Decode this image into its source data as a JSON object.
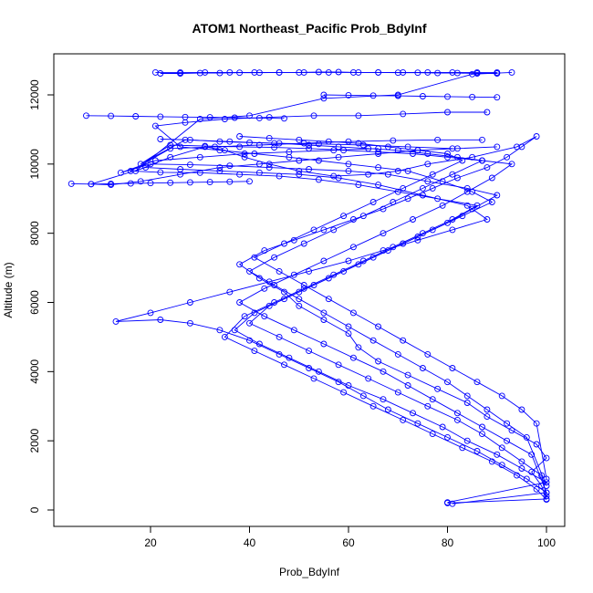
{
  "chart_data": {
    "type": "line",
    "title": "ATOM1 Northeast_Pacific Prob_BdyInf",
    "xlabel": "Prob_BdyInf",
    "ylabel": "Altitude (m)",
    "xlim": [
      0,
      100
    ],
    "ylim": [
      0,
      12660
    ],
    "x_ticks": [
      "20",
      "40",
      "60",
      "80",
      "100"
    ],
    "y_ticks": [
      "0",
      "2000",
      "4000",
      "6000",
      "8000",
      "10000",
      "12000"
    ],
    "grid": false,
    "legend": "none",
    "marker": "open-circle",
    "series": [
      {
        "profiles": [
          {
            "x": [
              80,
              100,
              99,
              97,
              100,
              98,
              93,
              88,
              84,
              78,
              72,
              66,
              62,
              60,
              55,
              50,
              47,
              42,
              38,
              43,
              49,
              55,
              61,
              67,
              72,
              77,
              82,
              88,
              92,
              95,
              98,
              94,
              85,
              76,
              70,
              64,
              57,
              50,
              44,
              39,
              35,
              31,
              24,
              17,
              30,
              40,
              55,
              70,
              85,
              93
            ],
            "y": [
              200,
              320,
              700,
              1100,
              1500,
              1900,
              2300,
              2700,
              3100,
              3500,
              3900,
              4300,
              4700,
              5100,
              5500,
              5900,
              6300,
              6700,
              7100,
              7500,
              7800,
              8100,
              8400,
              8700,
              9000,
              9300,
              9600,
              9900,
              10200,
              10500,
              10800,
              10500,
              10200,
              10000,
              9800,
              9700,
              9650,
              9800,
              10000,
              10200,
              10400,
              10500,
              10200,
              9800,
              11300,
              11400,
              11900,
              12000,
              12600,
              12650
            ]
          },
          {
            "x": [
              81,
              100,
              96,
              91,
              86,
              80,
              74,
              68,
              63,
              58,
              52,
              46,
              40,
              34,
              28,
              22,
              13,
              20,
              28,
              36,
              44,
              52,
              60,
              67,
              74,
              81,
              88,
              84,
              75,
              66,
              58,
              50,
              42,
              34,
              26,
              19,
              8,
              12,
              18,
              26,
              34,
              42,
              50,
              58,
              66,
              74,
              82,
              90
            ],
            "y": [
              180,
              500,
              900,
              1300,
              1700,
              2100,
              2500,
              2900,
              3300,
              3700,
              4100,
              4500,
              4900,
              5200,
              5400,
              5500,
              5450,
              5700,
              6000,
              6300,
              6600,
              6900,
              7200,
              7500,
              7800,
              8100,
              8400,
              8800,
              9100,
              9400,
              9600,
              9700,
              9750,
              9800,
              9850,
              9900,
              9420,
              9400,
              9500,
              9700,
              9900,
              10000,
              10100,
              10200,
              10300,
              10400,
              10450,
              10500
            ]
          },
          {
            "x": [
              80,
              100,
              95,
              90,
              84,
              79,
              73,
              67,
              60,
              54,
              48,
              42,
              37,
              41,
              47,
              53,
              59,
              65,
              71,
              77,
              83,
              89,
              85,
              79,
              72,
              66,
              60,
              54,
              48,
              41,
              34,
              26,
              21,
              27,
              35,
              44,
              53,
              62,
              71,
              80,
              88
            ],
            "y": [
              220,
              800,
              1200,
              1600,
              2000,
              2400,
              2800,
              3200,
              3600,
              4000,
              4400,
              4800,
              5200,
              5700,
              6100,
              6500,
              6900,
              7300,
              7700,
              8100,
              8500,
              8900,
              9200,
              9500,
              9800,
              9900,
              10000,
              10100,
              10200,
              10300,
              10400,
              10500,
              11100,
              11200,
              11300,
              11350,
              11400,
              11400,
              11450,
              11500,
              11500
            ]
          },
          {
            "x": [
              100,
              98,
              94,
              89,
              83,
              77,
              71,
              65,
              59,
              53,
              47,
              41,
              35,
              39,
              45,
              51,
              57,
              63,
              69,
              75,
              81,
              86,
              78,
              70,
              62,
              54,
              46,
              38,
              30,
              22,
              16,
              24,
              33,
              42,
              51,
              60,
              69,
              78,
              87
            ],
            "y": [
              300,
              600,
              1000,
              1400,
              1800,
              2200,
              2600,
              3000,
              3400,
              3800,
              4200,
              4600,
              5000,
              5600,
              6000,
              6400,
              6800,
              7200,
              7600,
              8000,
              8400,
              8800,
              9000,
              9200,
              9400,
              9550,
              9650,
              9700,
              9750,
              9760,
              9800,
              10450,
              10500,
              10550,
              10600,
              10650,
              10680,
              10700,
              10700
            ]
          },
          {
            "x": [
              100,
              99,
              95,
              91,
              87,
              82,
              76,
              70,
              64,
              58,
              52,
              46,
              40,
              44,
              50,
              56,
              62,
              68,
              74,
              80,
              85,
              90,
              84,
              76,
              68,
              60,
              52,
              44,
              36,
              28,
              20,
              14,
              21,
              30,
              39,
              48,
              57,
              66
            ],
            "y": [
              400,
              1000,
              1400,
              1800,
              2200,
              2600,
              3000,
              3400,
              3800,
              4200,
              4600,
              5000,
              5400,
              5900,
              6300,
              6700,
              7100,
              7500,
              7900,
              8300,
              8700,
              9100,
              9300,
              9500,
              9700,
              9800,
              9850,
              9900,
              9950,
              9980,
              10000,
              9750,
              10100,
              10200,
              10300,
              10350,
              10400,
              10450
            ]
          },
          {
            "x": [
              100,
              97,
              92,
              87,
              82,
              77,
              72,
              67,
              61,
              55,
              49,
              43,
              38,
              43,
              49,
              55,
              61,
              67,
              73,
              79,
              84,
              89,
              93,
              87,
              80,
              73,
              66,
              59,
              52,
              45,
              38,
              31,
              24,
              18,
              27,
              36,
              45,
              54,
              63,
              72,
              81
            ],
            "y": [
              500,
              1600,
              2000,
              2400,
              2800,
              3200,
              3600,
              4000,
              4400,
              4800,
              5200,
              5600,
              6000,
              6400,
              6800,
              7200,
              7600,
              8000,
              8400,
              8800,
              9200,
              9600,
              10000,
              10100,
              10200,
              10300,
              10350,
              10400,
              10450,
              10480,
              10500,
              10520,
              10550,
              10000,
              10700,
              10650,
              10600,
              10580,
              10550,
              10500,
              10450
            ]
          },
          {
            "x": [
              100,
              96,
              92,
              88,
              84,
              80,
              75,
              70,
              65,
              60,
              55,
              50,
              45,
              40,
              45,
              51,
              57,
              63,
              69,
              75,
              81,
              87,
              82,
              76,
              70,
              64,
              58,
              52,
              46,
              40,
              34,
              28,
              22
            ],
            "y": [
              700,
              2100,
              2500,
              2900,
              3300,
              3700,
              4100,
              4500,
              4900,
              5300,
              5700,
              6100,
              6500,
              6900,
              7300,
              7700,
              8100,
              8500,
              8900,
              9300,
              9700,
              10100,
              10200,
              10300,
              10400,
              10450,
              10500,
              10550,
              10600,
              10620,
              10650,
              10700,
              10720
            ]
          },
          {
            "x": [
              100,
              98,
              95,
              91,
              86,
              81,
              76,
              71,
              66,
              61,
              56,
              51,
              46,
              41,
              47,
              53,
              59,
              65,
              71,
              77,
              83,
              80,
              74,
              68,
              62,
              56,
              50,
              44,
              38
            ],
            "y": [
              900,
              2500,
              2900,
              3300,
              3700,
              4100,
              4500,
              4900,
              5300,
              5700,
              6100,
              6500,
              6900,
              7300,
              7700,
              8100,
              8500,
              8900,
              9300,
              9700,
              10100,
              10300,
              10400,
              10500,
              10600,
              10650,
              10700,
              10750,
              10800
            ]
          },
          {
            "x": [
              21,
              26,
              31,
              36,
              41,
              46,
              51,
              56,
              61,
              66,
              71,
              76,
              81,
              86,
              90
            ],
            "y": [
              12650,
              12650,
              12650,
              12650,
              12650,
              12650,
              12650,
              12650,
              12650,
              12650,
              12650,
              12650,
              12650,
              12650,
              12650
            ]
          },
          {
            "x": [
              22,
              26,
              30,
              34,
              38,
              42,
              46,
              50,
              54,
              58,
              62,
              66,
              70,
              74,
              78,
              82,
              86,
              90
            ],
            "y": [
              12620,
              12620,
              12630,
              12630,
              12640,
              12640,
              12650,
              12650,
              12660,
              12660,
              12650,
              12650,
              12640,
              12640,
              12630,
              12630,
              12620,
              12620
            ]
          },
          {
            "x": [
              4,
              8,
              12,
              16,
              20,
              24,
              28,
              32,
              36,
              40
            ],
            "y": [
              9430,
              9420,
              9430,
              9440,
              9450,
              9460,
              9470,
              9480,
              9490,
              9500
            ]
          },
          {
            "x": [
              7,
              12,
              17,
              22,
              27,
              32,
              37,
              42,
              47
            ],
            "y": [
              11400,
              11390,
              11380,
              11370,
              11360,
              11350,
              11340,
              11330,
              11320
            ]
          },
          {
            "x": [
              55,
              60,
              65,
              70,
              75,
              80,
              85,
              90
            ],
            "y": [
              12000,
              11990,
              11980,
              11970,
              11960,
              11950,
              11940,
              11930
            ]
          }
        ]
      }
    ]
  }
}
